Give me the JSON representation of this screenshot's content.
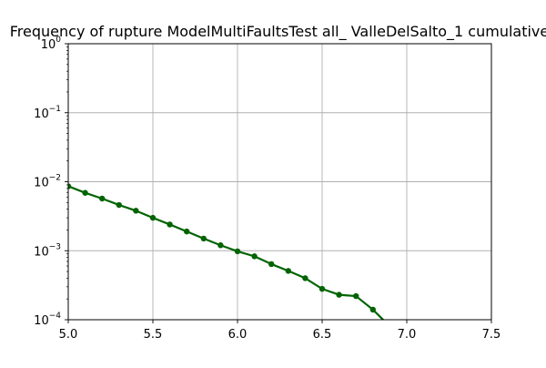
{
  "chart_data": {
    "type": "line",
    "title": "Frequency of rupture ModelMultiFaultsTest all_ ValleDelSalto_1 cumulative",
    "xlabel": "",
    "ylabel": "",
    "xlim": [
      5.0,
      7.5
    ],
    "ylim": [
      0.0001,
      1
    ],
    "yscale": "log",
    "grid": true,
    "x_ticks": [
      {
        "value": 5.0,
        "label": "5.0"
      },
      {
        "value": 5.5,
        "label": "5.5"
      },
      {
        "value": 6.0,
        "label": "6.0"
      },
      {
        "value": 6.5,
        "label": "6.5"
      },
      {
        "value": 7.0,
        "label": "7.0"
      },
      {
        "value": 7.5,
        "label": "7.5"
      }
    ],
    "y_ticks": [
      {
        "value": 0.0001,
        "base": "10",
        "exp": "−4"
      },
      {
        "value": 0.001,
        "base": "10",
        "exp": "−3"
      },
      {
        "value": 0.01,
        "base": "10",
        "exp": "−2"
      },
      {
        "value": 0.1,
        "base": "10",
        "exp": "−1"
      },
      {
        "value": 1,
        "base": "10",
        "exp": "0"
      }
    ],
    "series": [
      {
        "color": "#006400",
        "x": [
          5.0,
          5.1,
          5.2,
          5.3,
          5.4,
          5.5,
          5.6,
          5.7,
          5.8,
          5.9,
          6.0,
          6.1,
          6.2,
          6.3,
          6.4,
          6.5,
          6.6,
          6.7,
          6.8,
          6.9
        ],
        "y": [
          0.0086,
          0.0069,
          0.0057,
          0.0046,
          0.0038,
          0.003,
          0.0024,
          0.0019,
          0.0015,
          0.0012,
          0.00098,
          0.00083,
          0.00064,
          0.00051,
          0.0004,
          0.00028,
          0.00023,
          0.00022,
          0.00014,
          8e-05
        ]
      }
    ]
  }
}
